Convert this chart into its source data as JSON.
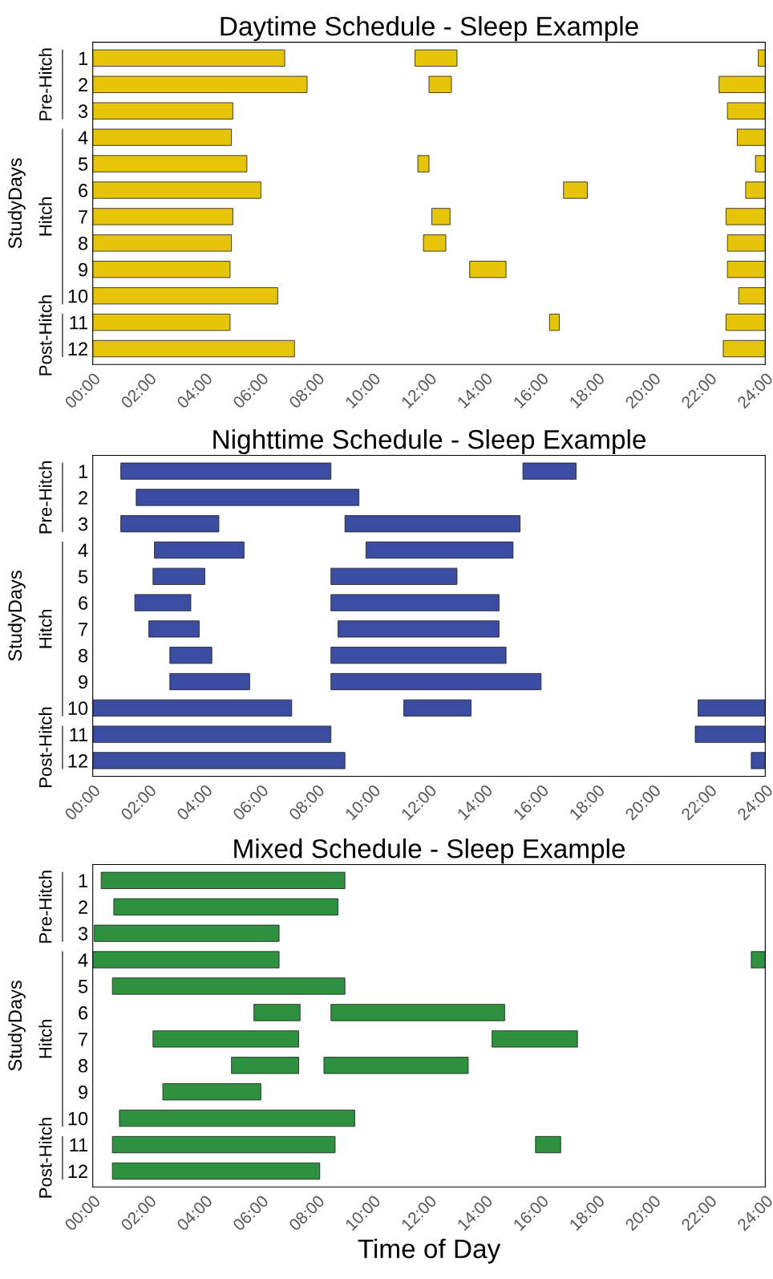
{
  "chart_data": [
    {
      "type": "bar",
      "orientation": "horizontal",
      "title": "Daytime Schedule - Sleep Example",
      "ylabel": "StudyDays",
      "categories": [
        "1",
        "2",
        "3",
        "4",
        "5",
        "6",
        "7",
        "8",
        "9",
        "10",
        "11",
        "12"
      ],
      "series": [
        {
          "color": "#e6c40a",
          "base": [
            0,
            0,
            0,
            0,
            0,
            0,
            0,
            0,
            0,
            0,
            0,
            0
          ],
          "values": [
            6.85,
            7.65,
            5.0,
            4.95,
            5.5,
            6.0,
            5.0,
            4.95,
            4.9,
            6.6,
            4.9,
            7.2
          ]
        },
        {
          "color": "#e6c40a",
          "base": [
            11.5,
            12.0,
            null,
            null,
            11.6,
            16.8,
            12.1,
            11.8,
            13.45,
            null,
            16.3,
            null
          ],
          "values": [
            1.5,
            0.8,
            null,
            null,
            0.4,
            0.85,
            0.65,
            0.8,
            1.3,
            null,
            0.35,
            null
          ]
        },
        {
          "color": "#e6c40a",
          "base": [
            23.75,
            22.35,
            22.65,
            23.0,
            23.65,
            23.3,
            22.6,
            22.65,
            22.65,
            23.05,
            22.6,
            22.5
          ],
          "values": [
            0.25,
            1.65,
            1.35,
            1.0,
            0.35,
            0.7,
            1.4,
            1.35,
            1.35,
            0.95,
            1.4,
            1.5
          ]
        }
      ],
      "xlim": [
        0,
        24
      ],
      "xticks": [
        {
          "value": 0,
          "label": "00:00"
        },
        {
          "value": 2,
          "label": "02:00"
        },
        {
          "value": 4,
          "label": "04:00"
        },
        {
          "value": 6,
          "label": "06:00"
        },
        {
          "value": 8,
          "label": "08:00"
        },
        {
          "value": 10,
          "label": "10:00"
        },
        {
          "value": 12,
          "label": "12:00"
        },
        {
          "value": 14,
          "label": "14:00"
        },
        {
          "value": 16,
          "label": "16:00"
        },
        {
          "value": 18,
          "label": "18:00"
        },
        {
          "value": 20,
          "label": "20:00"
        },
        {
          "value": 22,
          "label": "22:00"
        },
        {
          "value": 24,
          "label": "24:00"
        }
      ],
      "annotations": [
        "Pre-Hitch",
        "Hitch",
        "Post-Hitch"
      ],
      "grid": false,
      "legend": false
    },
    {
      "type": "bar",
      "orientation": "horizontal",
      "title": "Nighttime Schedule - Sleep Example",
      "ylabel": "StudyDays",
      "categories": [
        "1",
        "2",
        "3",
        "4",
        "5",
        "6",
        "7",
        "8",
        "9",
        "10",
        "11",
        "12"
      ],
      "series": [
        {
          "color": "#3a4da0",
          "base": [
            1.0,
            1.55,
            1.0,
            2.2,
            2.15,
            1.5,
            2.0,
            2.75,
            2.75,
            0,
            0,
            0
          ],
          "values": [
            7.5,
            7.95,
            3.5,
            3.2,
            1.85,
            2.0,
            1.8,
            1.5,
            2.85,
            7.1,
            8.5,
            9.0
          ]
        },
        {
          "color": "#3a4da0",
          "base": [
            15.35,
            null,
            9.0,
            9.75,
            8.5,
            8.5,
            8.75,
            8.5,
            8.5,
            11.1,
            21.5,
            23.5
          ],
          "values": [
            1.9,
            null,
            6.25,
            5.25,
            4.5,
            6.0,
            5.75,
            6.25,
            7.5,
            2.4,
            2.5,
            0.5
          ]
        },
        {
          "color": "#3a4da0",
          "base": [
            null,
            null,
            null,
            null,
            null,
            null,
            null,
            null,
            null,
            21.6,
            null,
            null
          ],
          "values": [
            null,
            null,
            null,
            null,
            null,
            null,
            null,
            null,
            null,
            2.4,
            null,
            null
          ]
        }
      ],
      "xlim": [
        0,
        24
      ],
      "xticks": [
        {
          "value": 0,
          "label": "00:00"
        },
        {
          "value": 2,
          "label": "02:00"
        },
        {
          "value": 4,
          "label": "04:00"
        },
        {
          "value": 6,
          "label": "06:00"
        },
        {
          "value": 8,
          "label": "08:00"
        },
        {
          "value": 10,
          "label": "10:00"
        },
        {
          "value": 12,
          "label": "12:00"
        },
        {
          "value": 14,
          "label": "14:00"
        },
        {
          "value": 16,
          "label": "16:00"
        },
        {
          "value": 18,
          "label": "18:00"
        },
        {
          "value": 20,
          "label": "20:00"
        },
        {
          "value": 22,
          "label": "22:00"
        },
        {
          "value": 24,
          "label": "24:00"
        }
      ],
      "annotations": [
        "Pre-Hitch",
        "Hitch",
        "Post-Hitch"
      ],
      "grid": false,
      "legend": false
    },
    {
      "type": "bar",
      "orientation": "horizontal",
      "title": "Mixed Schedule - Sleep Example",
      "ylabel": "StudyDays",
      "xlabel": "Time of Day",
      "categories": [
        "1",
        "2",
        "3",
        "4",
        "5",
        "6",
        "7",
        "8",
        "9",
        "10",
        "11",
        "12"
      ],
      "series": [
        {
          "color": "#2e9140",
          "base": [
            0.3,
            0.75,
            0.05,
            0,
            0.7,
            5.75,
            2.15,
            4.95,
            2.5,
            0.95,
            0.7,
            0.7
          ],
          "values": [
            8.7,
            8.0,
            6.6,
            6.65,
            8.3,
            1.65,
            5.2,
            2.4,
            3.5,
            8.4,
            7.95,
            7.4
          ]
        },
        {
          "color": "#2e9140",
          "base": [
            null,
            null,
            null,
            23.5,
            null,
            8.5,
            14.25,
            8.25,
            null,
            null,
            15.8,
            null
          ],
          "values": [
            null,
            null,
            null,
            0.5,
            null,
            6.2,
            3.05,
            5.15,
            null,
            null,
            0.9,
            null
          ]
        }
      ],
      "xlim": [
        0,
        24
      ],
      "xticks": [
        {
          "value": 0,
          "label": "00:00"
        },
        {
          "value": 2,
          "label": "02:00"
        },
        {
          "value": 4,
          "label": "04:00"
        },
        {
          "value": 6,
          "label": "06:00"
        },
        {
          "value": 8,
          "label": "08:00"
        },
        {
          "value": 10,
          "label": "10:00"
        },
        {
          "value": 12,
          "label": "12:00"
        },
        {
          "value": 14,
          "label": "14:00"
        },
        {
          "value": 16,
          "label": "16:00"
        },
        {
          "value": 18,
          "label": "18:00"
        },
        {
          "value": 20,
          "label": "20:00"
        },
        {
          "value": 22,
          "label": "22:00"
        },
        {
          "value": 24,
          "label": "24:00"
        }
      ],
      "annotations": [
        "Pre-Hitch",
        "Hitch",
        "Post-Hitch"
      ],
      "grid": false,
      "legend": false
    }
  ]
}
